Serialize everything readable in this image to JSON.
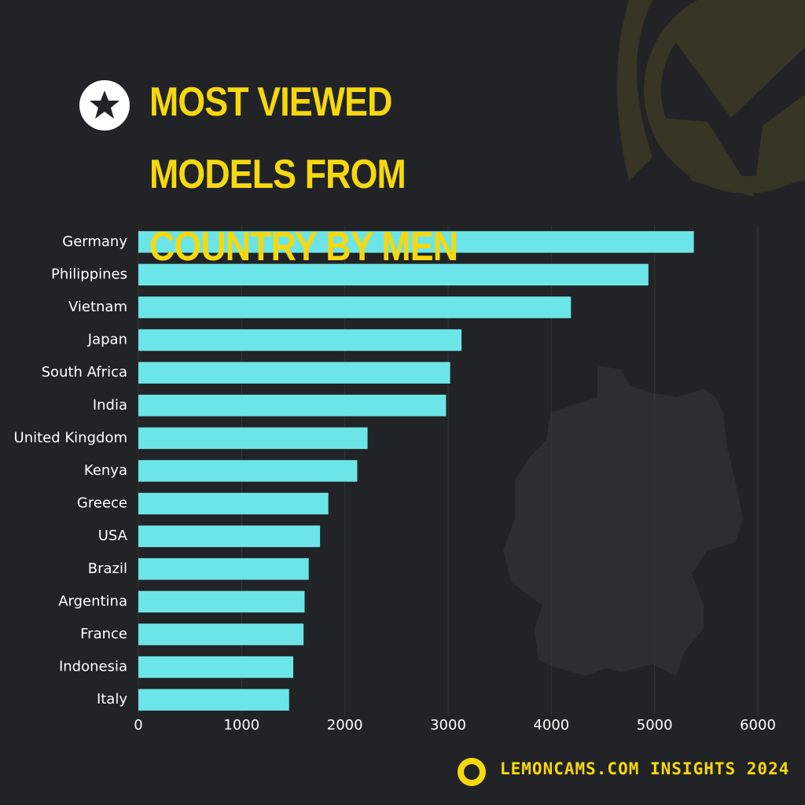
{
  "chart_data": {
    "type": "barh",
    "title": "MOST VIEWED MODELS FROM COUNTRY BY MEN",
    "categories": [
      "Germany",
      "Philippines",
      "Vietnam",
      "Japan",
      "South Africa",
      "India",
      "United Kingdom",
      "Kenya",
      "Greece",
      "USA",
      "Brazil",
      "Argentina",
      "France",
      "Indonesia",
      "Italy"
    ],
    "values": [
      5380,
      4940,
      4190,
      3130,
      3020,
      2980,
      2220,
      2120,
      1840,
      1760,
      1650,
      1610,
      1600,
      1500,
      1460
    ],
    "color": "#6ce5e8",
    "xlim": [
      0,
      6000
    ],
    "xticks": [
      0,
      1000,
      2000,
      3000,
      4000,
      5000,
      6000
    ],
    "grid": true,
    "footer": "LEMONCAMS.COM INSIGHTS 2024"
  }
}
